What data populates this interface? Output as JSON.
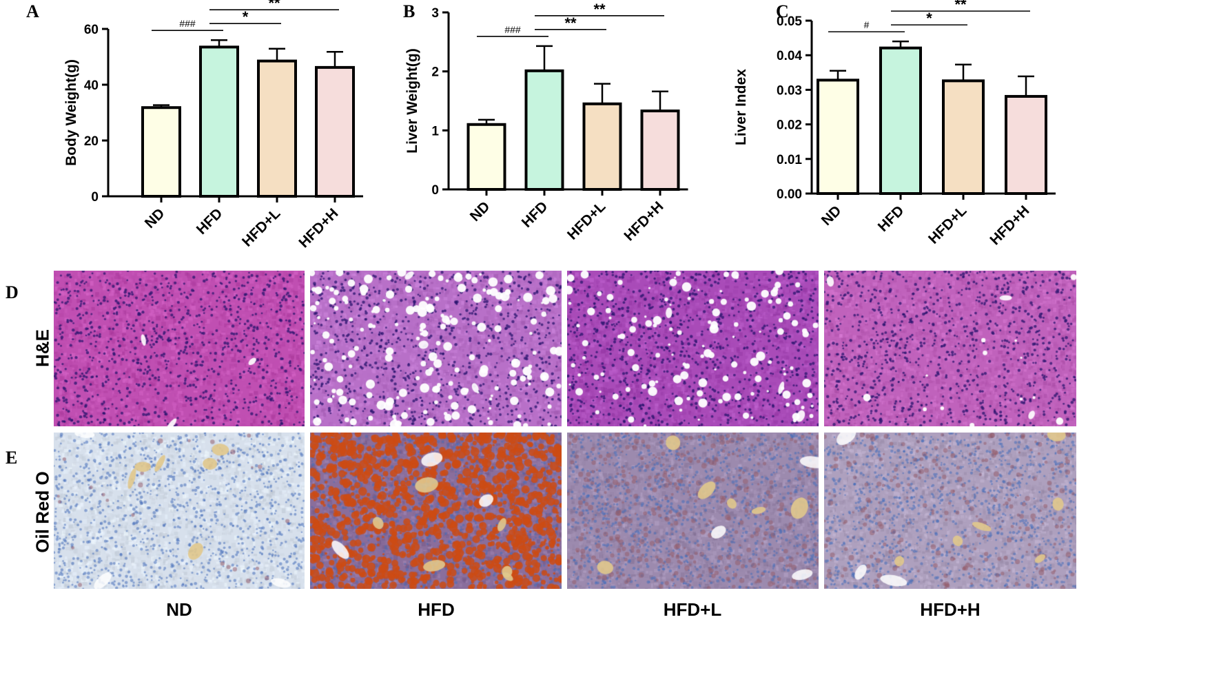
{
  "chart_data": [
    {
      "type": "bar",
      "panel": "A",
      "ylabel": "Body Weight(g)",
      "categories": [
        "ND",
        "HFD",
        "HFD+L",
        "HFD+H"
      ],
      "values": [
        31.8,
        53.5,
        48.5,
        46.2
      ],
      "errors": [
        0.9,
        2.5,
        4.4,
        5.6
      ],
      "ylim": [
        0,
        60
      ],
      "yticks": [
        "0",
        "20",
        "40",
        "60"
      ],
      "colors": [
        "#FEFEE6",
        "#C6F4DE",
        "#F5DFC2",
        "#F6DDDC"
      ],
      "annotations": [
        {
          "from": "ND",
          "to": "HFD",
          "label": "###"
        },
        {
          "from": "HFD",
          "to": "HFD+L",
          "label": "*"
        },
        {
          "from": "HFD",
          "to": "HFD+H",
          "label": "**"
        }
      ]
    },
    {
      "type": "bar",
      "panel": "B",
      "ylabel": "Liver Weight(g)",
      "categories": [
        "ND",
        "HFD",
        "HFD+L",
        "HFD+H"
      ],
      "values": [
        1.1,
        2.01,
        1.45,
        1.33
      ],
      "errors": [
        0.08,
        0.42,
        0.34,
        0.33
      ],
      "ylim": [
        0,
        3
      ],
      "yticks": [
        "0",
        "1",
        "2",
        "3"
      ],
      "colors": [
        "#FEFEE6",
        "#C6F4DE",
        "#F5DFC2",
        "#F6DDDC"
      ],
      "annotations": [
        {
          "from": "ND",
          "to": "HFD",
          "label": "###"
        },
        {
          "from": "HFD",
          "to": "HFD+L",
          "label": "**"
        },
        {
          "from": "HFD",
          "to": "HFD+H",
          "label": "**"
        }
      ]
    },
    {
      "type": "bar",
      "panel": "C",
      "ylabel": "Liver Index",
      "categories": [
        "ND",
        "HFD",
        "HFD+L",
        "HFD+H"
      ],
      "values": [
        0.0328,
        0.0421,
        0.0326,
        0.0281
      ],
      "errors": [
        0.0027,
        0.0019,
        0.0047,
        0.0058
      ],
      "ylim": [
        0,
        0.05
      ],
      "yticks": [
        "0.00",
        "0.01",
        "0.02",
        "0.03",
        "0.04",
        "0.05"
      ],
      "colors": [
        "#FEFEE6",
        "#C6F4DE",
        "#F5DFC2",
        "#F6DDDC"
      ],
      "annotations": [
        {
          "from": "ND",
          "to": "HFD",
          "label": "#"
        },
        {
          "from": "HFD",
          "to": "HFD+L",
          "label": "*"
        },
        {
          "from": "HFD",
          "to": "HFD+H",
          "label": "**"
        }
      ]
    }
  ],
  "labels": {
    "a": "A",
    "b": "B",
    "c": "C",
    "d": "D",
    "e": "E"
  },
  "rows": {
    "he": "H&E",
    "oro": "Oil Red O"
  },
  "groups": [
    "ND",
    "HFD",
    "HFD+L",
    "HFD+H"
  ],
  "histology": {
    "he_base": [
      "#C04FB2",
      "#B870C8",
      "#A94BB8",
      "#C062BC"
    ],
    "he_fat_vacuoles": [
      0.0,
      0.7,
      0.5,
      0.05
    ],
    "oro_base": [
      "#D7E0EC",
      "#8A6E9C",
      "#9C8AAE",
      "#AEA0BE"
    ],
    "oro_lipid_level": [
      0.02,
      0.9,
      0.3,
      0.2
    ]
  }
}
